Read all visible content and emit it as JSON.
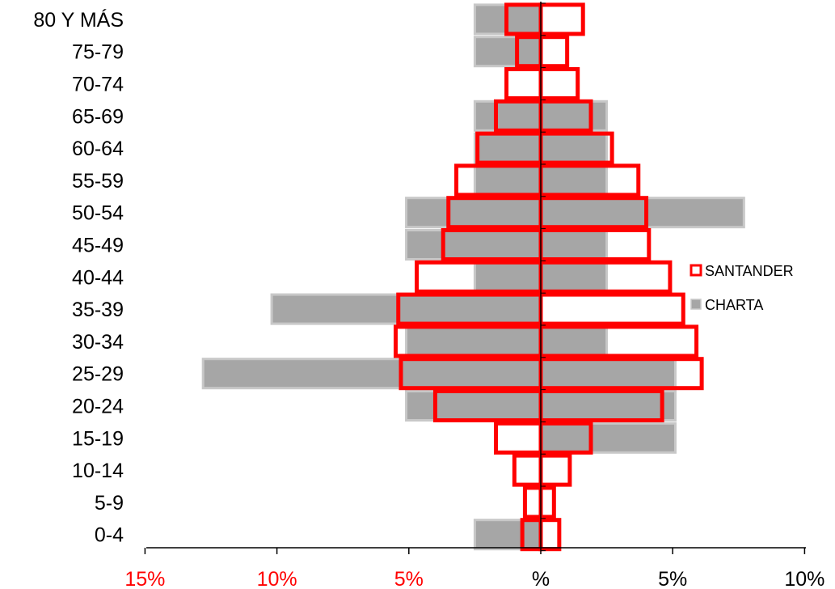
{
  "chart_data": {
    "type": "bar",
    "orientation": "horizontal",
    "subtype": "population-pyramid",
    "categories": [
      "80 Y MÁS",
      "75-79",
      "70-74",
      "65-69",
      "60-64",
      "55-59",
      "50-54",
      "45-49",
      "40-44",
      "35-39",
      "30-34",
      "25-29",
      "20-24",
      "15-19",
      "10-14",
      "5-9",
      "0-4"
    ],
    "series": [
      {
        "name": "CHARTA",
        "style": "filled",
        "color": "#a6a6a6",
        "border_color": "#c8c8c8",
        "left_values": [
          2.5,
          2.5,
          0,
          2.5,
          2.5,
          2.5,
          5.1,
          5.1,
          2.5,
          10.2,
          5.1,
          12.8,
          5.1,
          0,
          0,
          0,
          2.5
        ],
        "right_values": [
          0,
          0,
          0,
          2.5,
          2.5,
          2.5,
          7.7,
          2.5,
          2.5,
          0,
          2.5,
          5.1,
          5.1,
          5.1,
          0,
          0,
          0
        ]
      },
      {
        "name": "SANTANDER",
        "style": "outline",
        "color": "#ff0000",
        "left_values": [
          1.3,
          0.9,
          1.3,
          1.7,
          2.4,
          3.2,
          3.5,
          3.7,
          4.7,
          5.4,
          5.5,
          5.3,
          4.0,
          1.7,
          1.0,
          0.6,
          0.7
        ],
        "right_values": [
          1.6,
          1.0,
          1.4,
          1.9,
          2.7,
          3.7,
          4.0,
          4.1,
          4.9,
          5.4,
          5.9,
          6.1,
          4.6,
          1.9,
          1.1,
          0.5,
          0.7
        ]
      }
    ],
    "x_ticks": [
      {
        "value": -15,
        "label": "15%",
        "color": "#ff0000"
      },
      {
        "value": -10,
        "label": "10%",
        "color": "#ff0000"
      },
      {
        "value": -5,
        "label": "5%",
        "color": "#ff0000"
      },
      {
        "value": 0,
        "label": "%",
        "color": "#000000"
      },
      {
        "value": 5,
        "label": "5%",
        "color": "#000000"
      },
      {
        "value": 10,
        "label": "10%",
        "color": "#000000"
      }
    ],
    "xlim": [
      -15,
      10
    ],
    "title": "",
    "xlabel": "",
    "ylabel": "",
    "grid": false,
    "legend": {
      "position": "right",
      "items": [
        {
          "name": "SANTANDER",
          "style": "outline",
          "color": "#ff0000"
        },
        {
          "name": "CHARTA",
          "style": "filled",
          "color": "#a6a6a6"
        }
      ]
    }
  }
}
